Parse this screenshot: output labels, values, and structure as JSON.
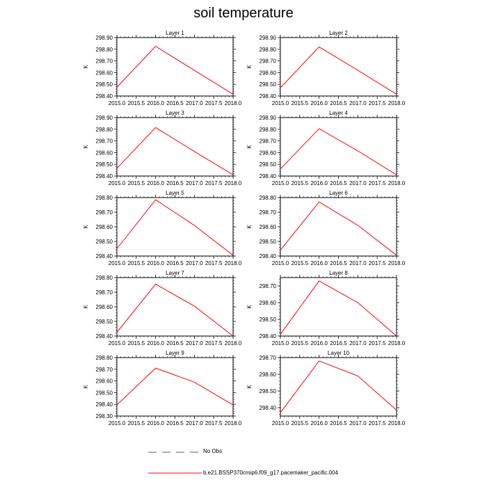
{
  "page": {
    "title": "soil temperature",
    "legend": {
      "obs_label": "No Obs",
      "model_label": "b.e21.BSSP370cmip6.f09_g17.pacemaker_pacific.004"
    }
  },
  "colors": {
    "model_line": "#ff0000",
    "obs_line": "#5a5a8a",
    "axis": "#000000"
  },
  "chart_data": [
    {
      "type": "line",
      "title": "Layer 1",
      "xlabel": "",
      "ylabel": "K",
      "x": [
        2015.0,
        2016.0,
        2017.0,
        2018.0
      ],
      "xlim": [
        2015.0,
        2018.0
      ],
      "xticks": [
        "2015.0",
        "2015.5",
        "2016.0",
        "2016.5",
        "2017.0",
        "2017.5",
        "2018.0"
      ],
      "ylim": [
        298.4,
        298.9
      ],
      "yticks": [
        "298.40",
        "298.50",
        "298.60",
        "298.70",
        "298.80",
        "298.90"
      ],
      "series": [
        {
          "name": "b.e21.BSSP370cmip6.f09_g17.pacemaker_pacific.004",
          "values": [
            298.475,
            298.825,
            298.62,
            298.415
          ]
        }
      ]
    },
    {
      "type": "line",
      "title": "Layer 2",
      "xlabel": "",
      "ylabel": "K",
      "x": [
        2015.0,
        2016.0,
        2017.0,
        2018.0
      ],
      "xlim": [
        2015.0,
        2018.0
      ],
      "xticks": [
        "2015.0",
        "2015.5",
        "2016.0",
        "2016.5",
        "2017.0",
        "2017.5",
        "2018.0"
      ],
      "ylim": [
        298.4,
        298.9
      ],
      "yticks": [
        "298.40",
        "298.50",
        "298.60",
        "298.70",
        "298.80",
        "298.90"
      ],
      "series": [
        {
          "name": "b.e21.BSSP370cmip6.f09_g17.pacemaker_pacific.004",
          "values": [
            298.47,
            298.82,
            298.62,
            298.415
          ]
        }
      ]
    },
    {
      "type": "line",
      "title": "Layer 3",
      "xlabel": "",
      "ylabel": "K",
      "x": [
        2015.0,
        2016.0,
        2017.0,
        2018.0
      ],
      "xlim": [
        2015.0,
        2018.0
      ],
      "xticks": [
        "2015.0",
        "2015.5",
        "2016.0",
        "2016.5",
        "2017.0",
        "2017.5",
        "2018.0"
      ],
      "ylim": [
        298.4,
        298.9
      ],
      "yticks": [
        "298.40",
        "298.50",
        "298.60",
        "298.70",
        "298.80",
        "298.90"
      ],
      "series": [
        {
          "name": "b.e21.BSSP370cmip6.f09_g17.pacemaker_pacific.004",
          "values": [
            298.465,
            298.815,
            298.61,
            298.41
          ]
        }
      ]
    },
    {
      "type": "line",
      "title": "Layer 4",
      "xlabel": "",
      "ylabel": "K",
      "x": [
        2015.0,
        2016.0,
        2017.0,
        2018.0
      ],
      "xlim": [
        2015.0,
        2018.0
      ],
      "xticks": [
        "2015.0",
        "2015.5",
        "2016.0",
        "2016.5",
        "2017.0",
        "2017.5",
        "2018.0"
      ],
      "ylim": [
        298.4,
        298.9
      ],
      "yticks": [
        "298.40",
        "298.50",
        "298.60",
        "298.70",
        "298.80",
        "298.90"
      ],
      "series": [
        {
          "name": "b.e21.BSSP370cmip6.f09_g17.pacemaker_pacific.004",
          "values": [
            298.46,
            298.805,
            298.615,
            298.41
          ]
        }
      ]
    },
    {
      "type": "line",
      "title": "Layer 5",
      "xlabel": "",
      "ylabel": "K",
      "x": [
        2015.0,
        2016.0,
        2017.0,
        2018.0
      ],
      "xlim": [
        2015.0,
        2018.0
      ],
      "xticks": [
        "2015.0",
        "2015.5",
        "2016.0",
        "2016.5",
        "2017.0",
        "2017.5",
        "2018.0"
      ],
      "ylim": [
        298.4,
        298.8
      ],
      "yticks": [
        "298.40",
        "298.50",
        "298.60",
        "298.70",
        "298.80"
      ],
      "series": [
        {
          "name": "b.e21.BSSP370cmip6.f09_g17.pacemaker_pacific.004",
          "values": [
            298.45,
            298.785,
            298.61,
            298.405
          ]
        }
      ]
    },
    {
      "type": "line",
      "title": "Layer 6",
      "xlabel": "",
      "ylabel": "K",
      "x": [
        2015.0,
        2016.0,
        2017.0,
        2018.0
      ],
      "xlim": [
        2015.0,
        2018.0
      ],
      "xticks": [
        "2015.0",
        "2015.5",
        "2016.0",
        "2016.5",
        "2017.0",
        "2017.5",
        "2018.0"
      ],
      "ylim": [
        298.4,
        298.8
      ],
      "yticks": [
        "298.40",
        "298.50",
        "298.60",
        "298.70",
        "298.80"
      ],
      "series": [
        {
          "name": "b.e21.BSSP370cmip6.f09_g17.pacemaker_pacific.004",
          "values": [
            298.44,
            298.77,
            298.61,
            298.405
          ]
        }
      ]
    },
    {
      "type": "line",
      "title": "Layer 7",
      "xlabel": "",
      "ylabel": "K",
      "x": [
        2015.0,
        2016.0,
        2017.0,
        2018.0
      ],
      "xlim": [
        2015.0,
        2018.0
      ],
      "xticks": [
        "2015.0",
        "2015.5",
        "2016.0",
        "2016.5",
        "2017.0",
        "2017.5",
        "2018.0"
      ],
      "ylim": [
        298.4,
        298.8
      ],
      "yticks": [
        "298.40",
        "298.50",
        "298.60",
        "298.70",
        "298.80"
      ],
      "series": [
        {
          "name": "b.e21.BSSP370cmip6.f09_g17.pacemaker_pacific.004",
          "values": [
            298.425,
            298.755,
            298.605,
            298.4
          ]
        }
      ]
    },
    {
      "type": "line",
      "title": "Layer 8",
      "xlabel": "",
      "ylabel": "K",
      "x": [
        2015.0,
        2016.0,
        2017.0,
        2018.0
      ],
      "xlim": [
        2015.0,
        2018.0
      ],
      "xticks": [
        "2015.0",
        "2015.5",
        "2016.0",
        "2016.5",
        "2017.0",
        "2017.5",
        "2018.0"
      ],
      "ylim": [
        298.4,
        298.75
      ],
      "yticks": [
        "298.40",
        "298.50",
        "298.60",
        "298.70"
      ],
      "series": [
        {
          "name": "b.e21.BSSP370cmip6.f09_g17.pacemaker_pacific.004",
          "values": [
            298.41,
            298.73,
            298.6,
            298.4
          ]
        }
      ]
    },
    {
      "type": "line",
      "title": "Layer 9",
      "xlabel": "",
      "ylabel": "K",
      "x": [
        2015.0,
        2016.0,
        2017.0,
        2018.0
      ],
      "xlim": [
        2015.0,
        2018.0
      ],
      "xticks": [
        "2015.0",
        "2015.5",
        "2016.0",
        "2016.5",
        "2017.0",
        "2017.5",
        "2018.0"
      ],
      "ylim": [
        298.3,
        298.8
      ],
      "yticks": [
        "298.30",
        "298.40",
        "298.50",
        "298.60",
        "298.70",
        "298.80"
      ],
      "series": [
        {
          "name": "b.e21.BSSP370cmip6.f09_g17.pacemaker_pacific.004",
          "values": [
            298.395,
            298.71,
            298.59,
            298.395
          ]
        }
      ]
    },
    {
      "type": "line",
      "title": "Layer 10",
      "xlabel": "",
      "ylabel": "K",
      "x": [
        2015.0,
        2016.0,
        2017.0,
        2018.0
      ],
      "xlim": [
        2015.0,
        2018.0
      ],
      "xticks": [
        "2015.0",
        "2015.5",
        "2016.0",
        "2016.5",
        "2017.0",
        "2017.5",
        "2018.0"
      ],
      "ylim": [
        298.35,
        298.7
      ],
      "yticks": [
        "298.40",
        "298.50",
        "298.60",
        "298.70"
      ],
      "series": [
        {
          "name": "b.e21.BSSP370cmip6.f09_g17.pacemaker_pacific.004",
          "values": [
            298.37,
            298.68,
            298.59,
            298.385
          ]
        }
      ]
    }
  ]
}
